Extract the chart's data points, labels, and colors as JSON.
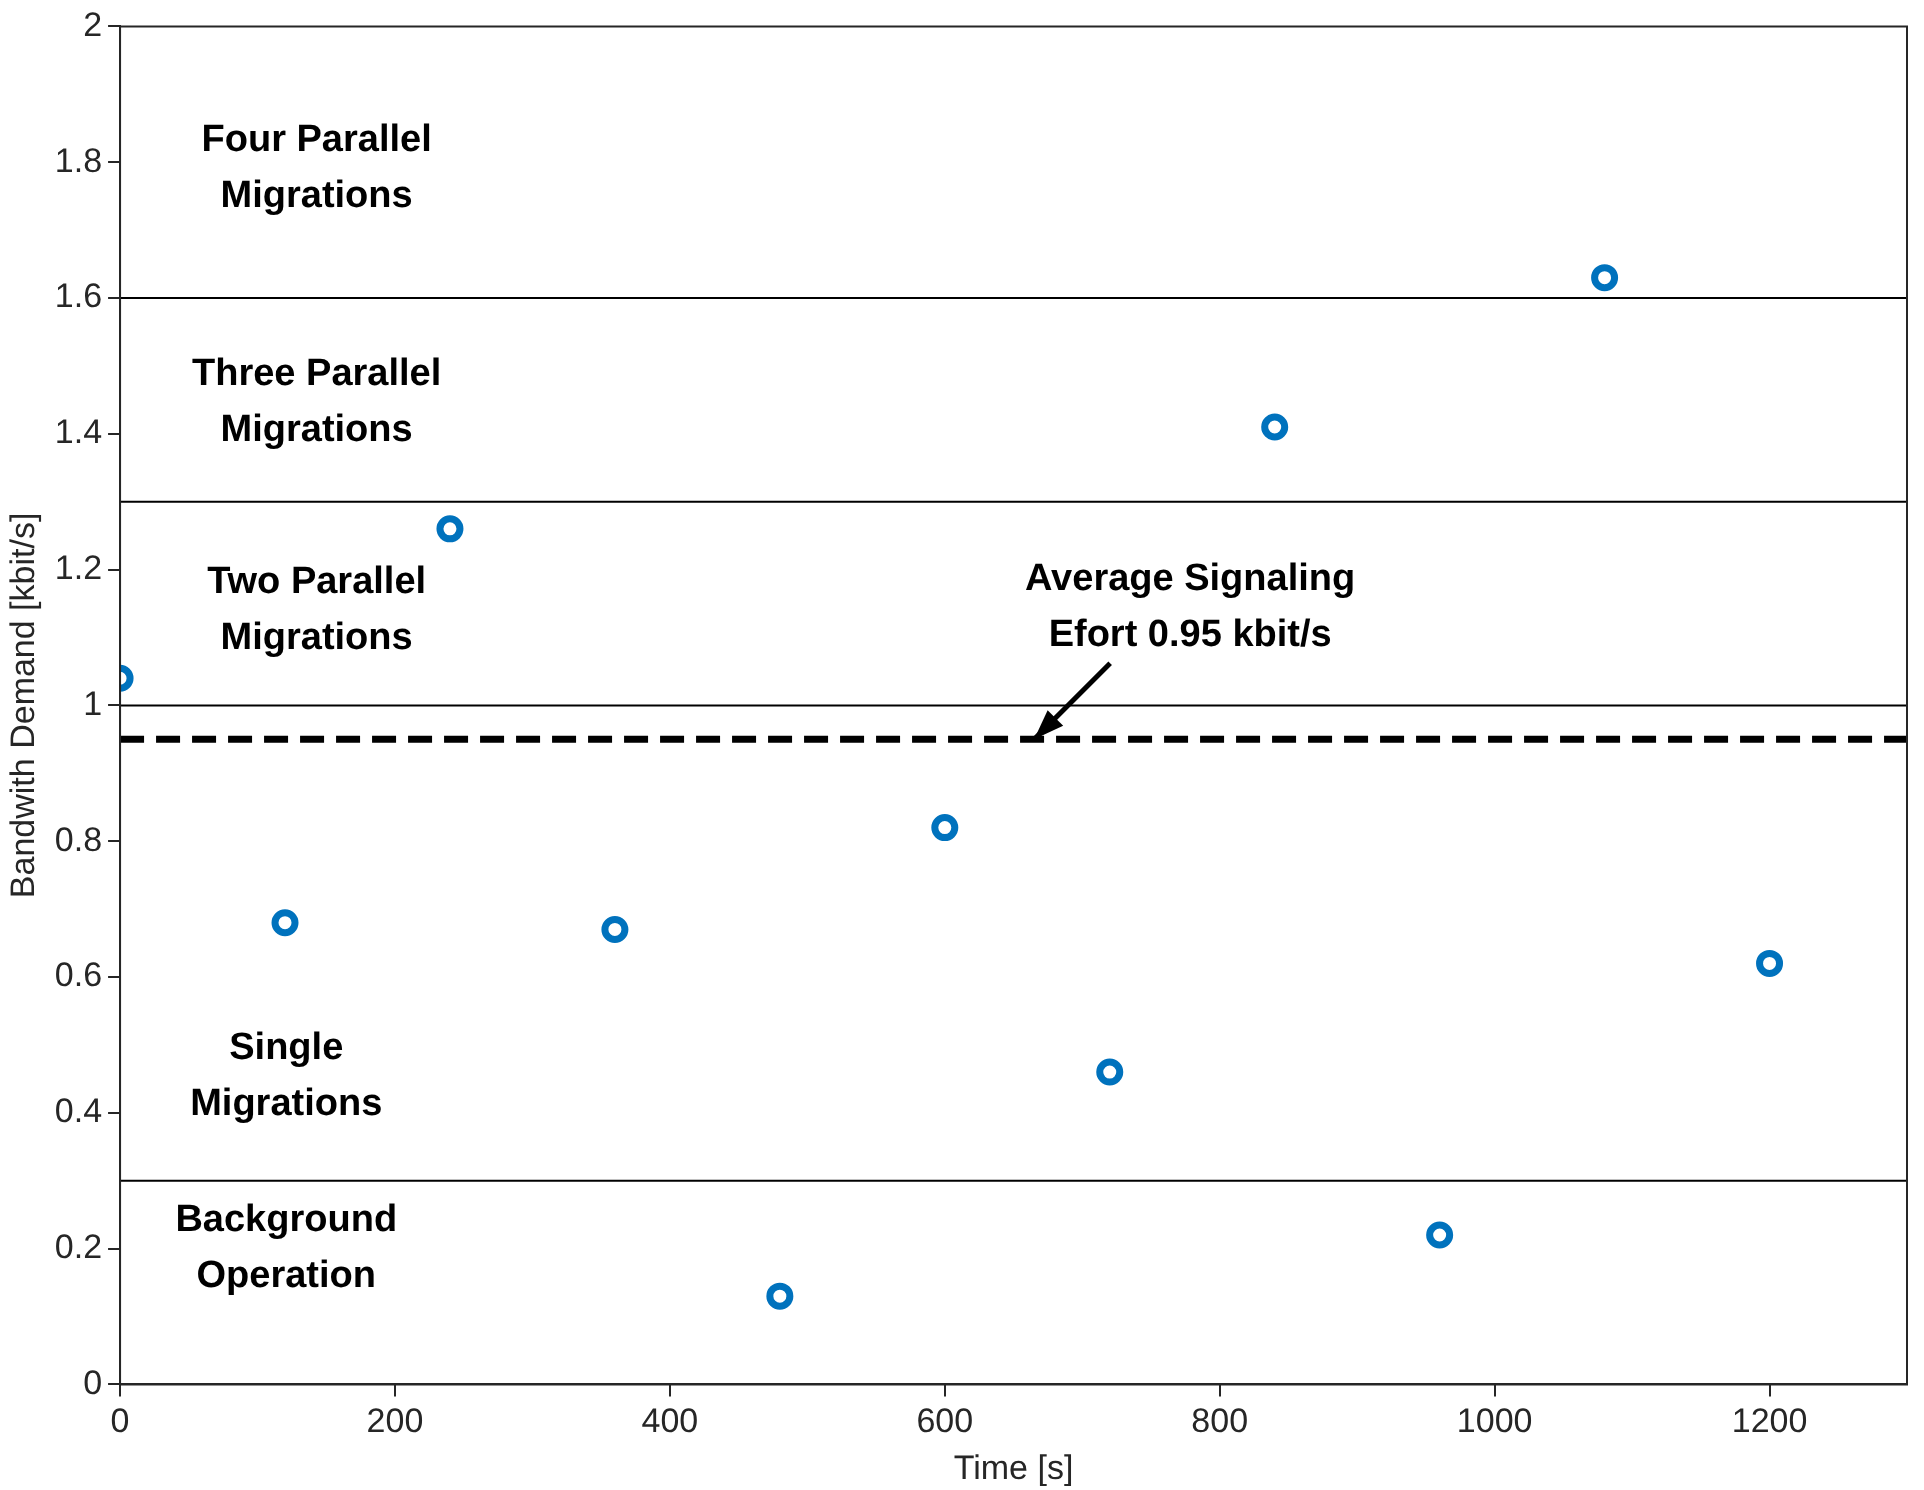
{
  "chart_data": {
    "type": "scatter",
    "xlabel": "Time [s]",
    "ylabel": "Bandwith Demand [kbit/s]",
    "x": [
      0,
      120,
      240,
      360,
      480,
      600,
      720,
      840,
      960,
      1080,
      1200
    ],
    "series": [
      {
        "color": "#0072bd",
        "values": [
          1.04,
          0.68,
          1.26,
          0.67,
          0.13,
          0.82,
          0.46,
          1.41,
          0.22,
          1.63,
          0.62
        ]
      }
    ],
    "marker": "circle",
    "grid": false,
    "legend": false,
    "xlim": [
      0,
      1300
    ],
    "xticks": [
      0,
      200,
      400,
      600,
      800,
      1000,
      1200
    ],
    "ylim": [
      0,
      2
    ],
    "yticks": [
      0,
      0.2,
      0.4,
      0.6,
      0.8,
      1,
      1.2,
      1.4,
      1.6,
      1.8,
      2
    ],
    "ref_lines": [
      {
        "axis": "y",
        "value": 1.6,
        "color": "#000000",
        "line_style": "solid"
      },
      {
        "axis": "y",
        "value": 1.3,
        "color": "#000000",
        "line_style": "solid"
      },
      {
        "axis": "y",
        "value": 1,
        "color": "#000000",
        "line_style": "solid"
      },
      {
        "axis": "y",
        "value": 0.3,
        "color": "#000000",
        "line_style": "solid"
      },
      {
        "axis": "y",
        "value": 0.95,
        "color": "#000000",
        "line_style": "dashed"
      }
    ],
    "annotations": [
      "Four Parallel\nMigrations",
      "Three Parallel\nMigrations",
      "Two Parallel\nMigrations",
      "Single\nMigrations",
      "Background\nOperation",
      {
        "text": "Average Signaling\nEfort 0.95 kbit/s",
        "x": 665,
        "y": 0.95
      }
    ]
  }
}
